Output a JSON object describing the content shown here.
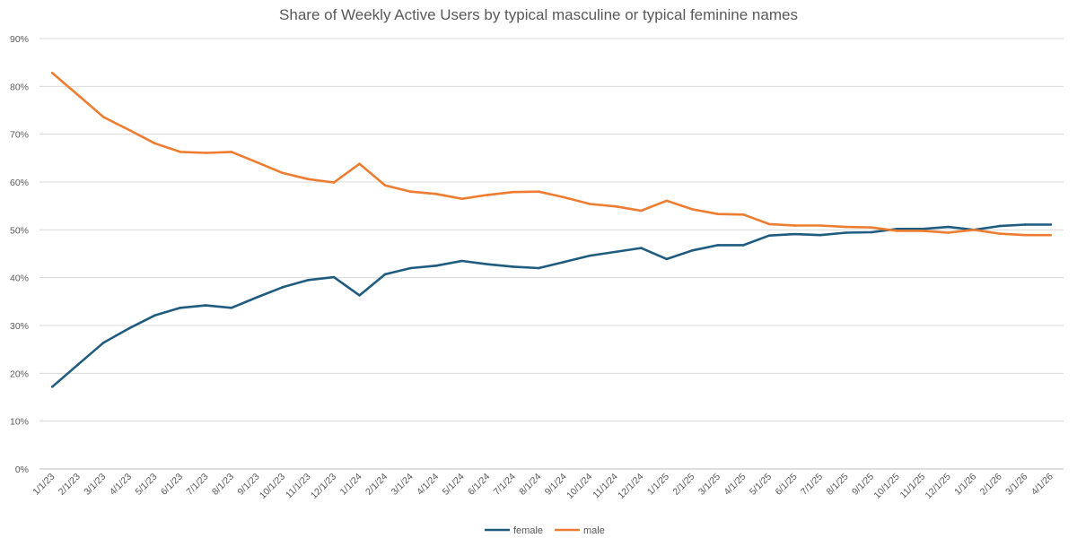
{
  "chart_data": {
    "type": "line",
    "title": "Share of Weekly Active Users by typical masculine or typical feminine names",
    "xlabel": "",
    "ylabel": "",
    "ylim": [
      0,
      90
    ],
    "y_ticks": [
      "0%",
      "10%",
      "20%",
      "30%",
      "40%",
      "50%",
      "60%",
      "70%",
      "80%",
      "90%"
    ],
    "grid": true,
    "legend_position": "bottom",
    "categories": [
      "1/1/23",
      "2/1/23",
      "3/1/23",
      "4/1/23",
      "5/1/23",
      "6/1/23",
      "7/1/23",
      "8/1/23",
      "9/1/23",
      "10/1/23",
      "11/1/23",
      "12/1/23",
      "1/1/24",
      "2/1/24",
      "3/1/24",
      "4/1/24",
      "5/1/24",
      "6/1/24",
      "7/1/24",
      "8/1/24",
      "9/1/24",
      "10/1/24",
      "11/1/24",
      "12/1/24",
      "1/1/25",
      "2/1/25",
      "3/1/25",
      "4/1/25",
      "5/1/25",
      "6/1/25",
      "7/1/25",
      "8/1/25",
      "9/1/25",
      "10/1/25",
      "11/1/25",
      "12/1/25",
      "1/1/26",
      "2/1/26",
      "3/1/26",
      "4/1/26"
    ],
    "series": [
      {
        "name": "female",
        "color": "#1f5c7f",
        "values": [
          17.2,
          21.8,
          26.4,
          29.4,
          32.1,
          33.7,
          34.2,
          33.7,
          35.9,
          38.0,
          39.5,
          40.1,
          36.3,
          40.7,
          42.0,
          42.5,
          43.5,
          42.8,
          42.3,
          42.0,
          43.3,
          44.6,
          45.4,
          46.2,
          43.9,
          45.7,
          46.8,
          46.8,
          48.8,
          49.1,
          48.9,
          49.4,
          49.5,
          50.2,
          50.2,
          50.6,
          50.0,
          50.8,
          51.1,
          51.1
        ]
      },
      {
        "name": "male",
        "color": "#ed7d31",
        "values": [
          82.8,
          78.2,
          73.6,
          70.9,
          68.1,
          66.3,
          66.1,
          66.3,
          64.1,
          61.9,
          60.6,
          59.9,
          63.8,
          59.3,
          58.0,
          57.5,
          56.5,
          57.3,
          57.9,
          58.0,
          56.8,
          55.4,
          54.9,
          54.0,
          56.1,
          54.3,
          53.3,
          53.2,
          51.2,
          50.9,
          50.9,
          50.6,
          50.5,
          49.8,
          49.8,
          49.4,
          50.0,
          49.2,
          48.9,
          48.9
        ]
      }
    ]
  }
}
